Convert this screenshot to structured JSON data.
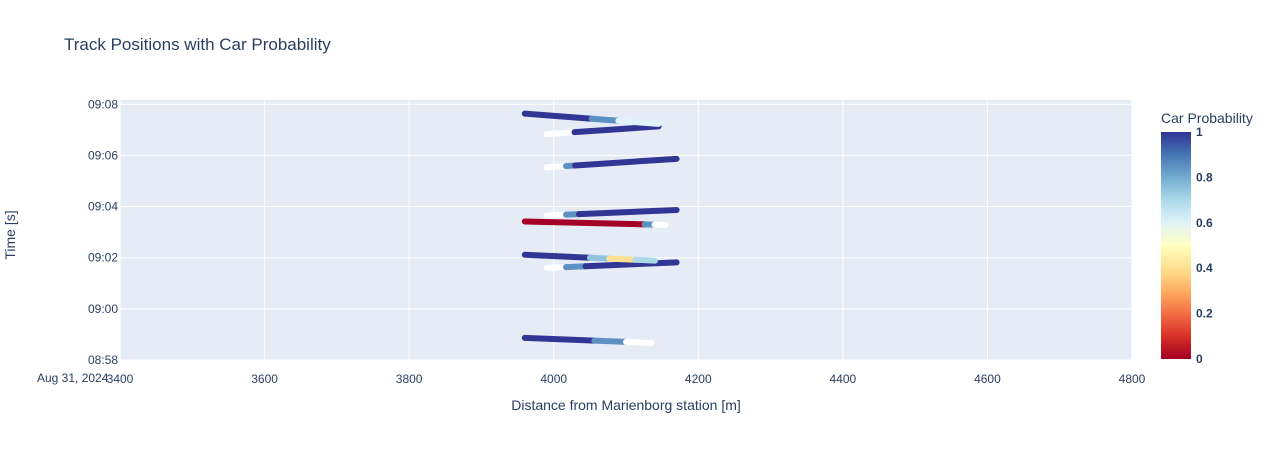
{
  "chart_data": {
    "type": "scatter",
    "title": "Track Positions with Car Probability",
    "xlabel": "Distance from Marienborg station [m]",
    "ylabel": "Time [s]",
    "xlim": [
      3400,
      4800
    ],
    "ylim": [
      "2024-08-31 08:58:00",
      "2024-08-31 09:08:10"
    ],
    "x_ticks": [
      3400,
      3600,
      3800,
      4000,
      4200,
      4400,
      4600,
      4800
    ],
    "x_tick_labels": [
      "3400",
      "3600",
      "3800",
      "4000",
      "4200",
      "4400",
      "4600",
      "4800"
    ],
    "y_ticks": [
      "2024-08-31 08:58:00",
      "2024-08-31 09:00:00",
      "2024-08-31 09:02:00",
      "2024-08-31 09:04:00",
      "2024-08-31 09:06:00",
      "2024-08-31 09:08:00"
    ],
    "y_tick_labels": [
      "08:58",
      "09:00",
      "09:02",
      "09:04",
      "09:06",
      "09:08"
    ],
    "y_date_label": "Aug 31, 2024",
    "grid": true,
    "colorbar": {
      "title": "Car Probability",
      "range": [
        0,
        1
      ],
      "tick_labels": [
        "0",
        "0.2",
        "0.4",
        "0.6",
        "0.8",
        "1"
      ],
      "colorscale": [
        "#a50026",
        "#d73027",
        "#f46d43",
        "#fdae61",
        "#fee090",
        "#ffffbf",
        "#e0f3f8",
        "#abd9e9",
        "#74add1",
        "#4575b4",
        "#313695"
      ]
    },
    "tracks": [
      {
        "x_start": 3960,
        "x_end": 4135,
        "t_start": "2024-08-31 08:58:52",
        "t_end": "2024-08-31 08:58:40",
        "segments": [
          {
            "from": 0,
            "to": 0.55,
            "p": 1.0
          },
          {
            "from": 0.55,
            "to": 0.8,
            "p": 0.85
          },
          {
            "from": 0.8,
            "to": 1,
            "p": 0.55
          }
        ]
      },
      {
        "x_start": 3990,
        "x_end": 4170,
        "t_start": "2024-08-31 09:01:36",
        "t_end": "2024-08-31 09:01:49",
        "segments": [
          {
            "from": 0,
            "to": 0.15,
            "p": 0.55
          },
          {
            "from": 0.15,
            "to": 0.3,
            "p": 0.85
          },
          {
            "from": 0.3,
            "to": 1,
            "p": 1.0
          }
        ]
      },
      {
        "x_start": 3960,
        "x_end": 4140,
        "t_start": "2024-08-31 09:02:07",
        "t_end": "2024-08-31 09:01:53",
        "segments": [
          {
            "from": 0,
            "to": 0.5,
            "p": 1.0
          },
          {
            "from": 0.5,
            "to": 0.65,
            "p": 0.75
          },
          {
            "from": 0.65,
            "to": 0.85,
            "p": 0.4
          },
          {
            "from": 0.85,
            "to": 1,
            "p": 0.7
          }
        ]
      },
      {
        "x_start": 3960,
        "x_end": 4155,
        "t_start": "2024-08-31 09:03:25",
        "t_end": "2024-08-31 09:03:17",
        "segments": [
          {
            "from": 0,
            "to": 0.85,
            "p": 0.0
          },
          {
            "from": 0.85,
            "to": 0.92,
            "p": 0.85
          },
          {
            "from": 0.92,
            "to": 1,
            "p": 0.55
          }
        ]
      },
      {
        "x_start": 3990,
        "x_end": 4170,
        "t_start": "2024-08-31 09:03:39",
        "t_end": "2024-08-31 09:03:52",
        "segments": [
          {
            "from": 0,
            "to": 0.15,
            "p": 0.55
          },
          {
            "from": 0.15,
            "to": 0.25,
            "p": 0.85
          },
          {
            "from": 0.25,
            "to": 1,
            "p": 1.0
          }
        ]
      },
      {
        "x_start": 3990,
        "x_end": 4170,
        "t_start": "2024-08-31 09:05:32",
        "t_end": "2024-08-31 09:05:52",
        "segments": [
          {
            "from": 0,
            "to": 0.15,
            "p": 0.55
          },
          {
            "from": 0.15,
            "to": 0.22,
            "p": 0.85
          },
          {
            "from": 0.22,
            "to": 1,
            "p": 1.0
          }
        ]
      },
      {
        "x_start": 3990,
        "x_end": 4145,
        "t_start": "2024-08-31 09:06:50",
        "t_end": "2024-08-31 09:07:08",
        "segments": [
          {
            "from": 0,
            "to": 0.25,
            "p": 0.55
          },
          {
            "from": 0.25,
            "to": 1,
            "p": 1.0
          }
        ]
      },
      {
        "x_start": 3960,
        "x_end": 4145,
        "t_start": "2024-08-31 09:07:38",
        "t_end": "2024-08-31 09:07:14",
        "segments": [
          {
            "from": 0,
            "to": 0.5,
            "p": 1.0
          },
          {
            "from": 0.5,
            "to": 0.7,
            "p": 0.85
          },
          {
            "from": 0.7,
            "to": 1,
            "p": 0.6
          }
        ]
      }
    ]
  }
}
